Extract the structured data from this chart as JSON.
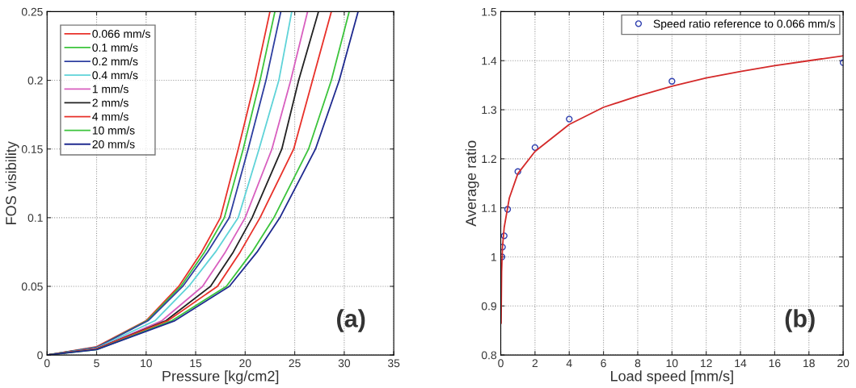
{
  "chart_data": [
    {
      "type": "line",
      "xlabel": "Pressure [kg/cm2]",
      "ylabel": "FOS visibility",
      "xlim": [
        0,
        35
      ],
      "ylim": [
        0,
        0.25
      ],
      "xticks": [
        0,
        5,
        10,
        15,
        20,
        25,
        30,
        35
      ],
      "yticks": [
        0,
        0.05,
        0.1,
        0.15,
        0.2,
        0.25
      ],
      "grid": true,
      "legend": "top left",
      "marker": "none",
      "line_style": "solid",
      "annotations": [
        "(a)"
      ],
      "series": [
        {
          "name": "0.066 mm/s",
          "color": "#e8312a",
          "x": [
            0,
            5,
            10,
            13.3,
            15.6,
            17.5,
            19.3,
            21.0,
            22.5
          ],
          "values": [
            0,
            0.006,
            0.025,
            0.05,
            0.075,
            0.1,
            0.15,
            0.2,
            0.25
          ]
        },
        {
          "name": "0.1 mm/s",
          "color": "#3cc43c",
          "x": [
            0,
            5,
            10.1,
            13.5,
            15.9,
            17.9,
            19.8,
            21.5,
            23.0
          ],
          "values": [
            0,
            0.0055,
            0.025,
            0.05,
            0.075,
            0.1,
            0.15,
            0.2,
            0.25
          ]
        },
        {
          "name": "0.2 mm/s",
          "color": "#2e3fa0",
          "x": [
            0,
            5,
            10.2,
            13.7,
            16.2,
            18.4,
            20.3,
            22.1,
            23.6
          ],
          "values": [
            0,
            0.0055,
            0.025,
            0.05,
            0.075,
            0.1,
            0.15,
            0.2,
            0.25
          ]
        },
        {
          "name": "0.4 mm/s",
          "color": "#5fd3d8",
          "x": [
            0,
            5,
            10.9,
            14.3,
            17.0,
            19.3,
            21.4,
            23.4,
            24.7
          ],
          "values": [
            0,
            0.005,
            0.025,
            0.05,
            0.075,
            0.1,
            0.15,
            0.2,
            0.25
          ]
        },
        {
          "name": "1 mm/s",
          "color": "#d85fbf",
          "x": [
            0,
            5,
            11.6,
            15.7,
            18.0,
            20.0,
            22.7,
            24.6,
            26.3
          ],
          "values": [
            0,
            0.0045,
            0.025,
            0.05,
            0.075,
            0.1,
            0.15,
            0.2,
            0.25
          ]
        },
        {
          "name": "2 mm/s",
          "color": "#222222",
          "x": [
            0,
            5,
            12.0,
            16.5,
            18.8,
            20.7,
            23.7,
            25.4,
            27.4
          ],
          "values": [
            0,
            0.0045,
            0.025,
            0.05,
            0.075,
            0.1,
            0.15,
            0.2,
            0.25
          ]
        },
        {
          "name": "4 mm/s",
          "color": "#e8312a",
          "x": [
            0,
            5,
            12.2,
            17.2,
            19.5,
            21.5,
            24.9,
            26.8,
            28.7
          ],
          "values": [
            0,
            0.0045,
            0.025,
            0.05,
            0.075,
            0.1,
            0.15,
            0.2,
            0.25
          ]
        },
        {
          "name": "10 mm/s",
          "color": "#3cc43c",
          "x": [
            0,
            5,
            12.6,
            18.1,
            20.7,
            22.9,
            26.4,
            28.7,
            30.5
          ],
          "values": [
            0,
            0.004,
            0.025,
            0.05,
            0.075,
            0.1,
            0.15,
            0.2,
            0.25
          ]
        },
        {
          "name": "20 mm/s",
          "color": "#1f2a8f",
          "x": [
            0,
            5,
            12.9,
            18.4,
            21.2,
            23.5,
            27.1,
            29.5,
            31.4
          ],
          "values": [
            0,
            0.004,
            0.025,
            0.05,
            0.075,
            0.1,
            0.15,
            0.2,
            0.25
          ]
        }
      ]
    },
    {
      "type": "scatter",
      "xlabel": "Load speed [mm/s]",
      "ylabel": "Average ratio",
      "xlim": [
        0,
        20
      ],
      "ylim": [
        0.8,
        1.5
      ],
      "xticks": [
        0,
        2,
        4,
        6,
        8,
        10,
        12,
        14,
        16,
        18,
        20
      ],
      "yticks": [
        0.8,
        0.9,
        1,
        1.1,
        1.2,
        1.3,
        1.4,
        1.5
      ],
      "grid": true,
      "legend": "top right",
      "marker": "circle",
      "annotations": [
        "(b)"
      ],
      "series": [
        {
          "name": "Speed ratio reference to 0.066 mm/s",
          "color": "#3040b0",
          "x": [
            0.066,
            0.1,
            0.2,
            0.4,
            1,
            2,
            4,
            10,
            20
          ],
          "values": [
            1.0,
            1.02,
            1.043,
            1.097,
            1.174,
            1.223,
            1.281,
            1.358,
            1.396
          ]
        },
        {
          "type": "line",
          "color": "#d42a2a",
          "marker": "none",
          "x": [
            0.02,
            0.05,
            0.1,
            0.2,
            0.5,
            1,
            2,
            4,
            6,
            8,
            10,
            12,
            14,
            16,
            18,
            20
          ],
          "values": [
            0.865,
            0.97,
            1.02,
            1.06,
            1.12,
            1.17,
            1.215,
            1.27,
            1.305,
            1.328,
            1.348,
            1.365,
            1.378,
            1.39,
            1.4,
            1.41
          ]
        }
      ]
    }
  ]
}
